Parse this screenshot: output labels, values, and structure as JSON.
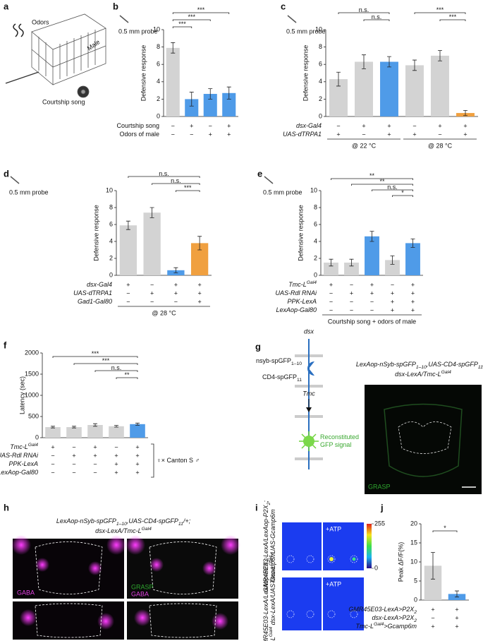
{
  "figure": {
    "a": {
      "panel": "a",
      "labels": [
        "Odors",
        "Male",
        "Courtship song"
      ]
    },
    "g": {
      "panel": "g",
      "gene_top": "dsx",
      "pre": [
        {
          "t": "nsyb-spGFP"
        },
        {
          "sub": "1–10"
        }
      ],
      "post": [
        {
          "t": "CD4-spGFP"
        },
        {
          "sub": "11"
        }
      ],
      "gene_bottom": "Tmc",
      "signal": [
        "Reconstituted",
        "GFP signal"
      ],
      "genotype": [
        [
          {
            "t": "LexAop-nSyb-spGFP"
          },
          {
            "sub": "1–10"
          },
          {
            "t": ",UAS-CD4-spGFP"
          },
          {
            "sub": "11"
          },
          {
            "t": "/+;"
          }
        ],
        [
          {
            "t": "dsx-LexA/Tmc-L"
          },
          {
            "sup": "Gal4"
          }
        ]
      ],
      "image_label": "GRASP"
    },
    "h": {
      "panel": "h",
      "genotype": [
        [
          {
            "t": "LexAop-nSyb-spGFP"
          },
          {
            "sub": "1–10"
          },
          {
            "t": ",UAS-CD4-spGFP"
          },
          {
            "sub": "11"
          },
          {
            "t": "/+;"
          }
        ],
        [
          {
            "t": "dsx-LexA/Tmc-L"
          },
          {
            "sup": "Gal4"
          }
        ]
      ],
      "label_left": "GABA",
      "label_right": [
        "GRASP",
        "GABA"
      ]
    },
    "i": {
      "panel": "i",
      "genotypes": [
        [
          [
            {
              "t": "GMR45E03-LexA/LexAop-P2X"
            },
            {
              "sub": "2"
            },
            {
              "t": ";"
            }
          ],
          [
            {
              "t": "Tmc-L"
            },
            {
              "sup": "Gal4"
            },
            {
              "t": "/UAS-Gcamp6m"
            }
          ]
        ],
        [
          [
            {
              "t": "GMR45E03-LexA/LexAop-P2X"
            },
            {
              "sub": "2"
            },
            {
              "t": ";"
            }
          ],
          [
            {
              "t": "Tmc-L"
            },
            {
              "sup": "Gal4"
            },
            {
              "t": " dsx-LexA/UAS-Gcamp6m"
            }
          ]
        ]
      ],
      "stimulus": "+ATP",
      "colorbar": [
        255,
        0
      ]
    }
  },
  "chart_data": [
    {
      "panel": "b",
      "type": "bar",
      "probe": "0.5 mm probe",
      "ylabel": "Defensive response",
      "ylim": [
        0,
        10
      ],
      "yticks": [
        0,
        2,
        4,
        6,
        8,
        10
      ],
      "values": [
        7.9,
        2.0,
        2.6,
        2.7
      ],
      "errors": [
        0.6,
        0.8,
        0.6,
        0.7
      ],
      "colors": [
        "#d3d3d3",
        "#4f9be8",
        "#4f9be8",
        "#4f9be8"
      ],
      "italic": false,
      "conditions": [
        {
          "label": [
            {
              "t": "Courtship song"
            }
          ],
          "values": [
            "−",
            "+",
            "−",
            "+"
          ]
        },
        {
          "label": [
            {
              "t": "Odors of male"
            }
          ],
          "values": [
            "−",
            "−",
            "+",
            "+"
          ]
        }
      ],
      "comparisons": [
        {
          "label": "***",
          "bars": [
            0,
            3
          ]
        },
        {
          "label": "***",
          "bars": [
            0,
            2
          ]
        },
        {
          "label": "***",
          "bars": [
            0,
            1
          ]
        }
      ]
    },
    {
      "panel": "c",
      "type": "bar",
      "probe": "0.5 mm probe",
      "ylabel": "Defensive response",
      "ylim": [
        0,
        10
      ],
      "yticks": [
        0,
        2,
        4,
        6,
        8,
        10
      ],
      "values": [
        4.3,
        6.3,
        6.3,
        5.9,
        7.0,
        0.4
      ],
      "errors": [
        0.8,
        0.8,
        0.6,
        0.6,
        0.6,
        0.3
      ],
      "colors": [
        "#d3d3d3",
        "#d3d3d3",
        "#4f9be8",
        "#d3d3d3",
        "#d3d3d3",
        "#f0a040"
      ],
      "italic": true,
      "conditions": [
        {
          "label": [
            {
              "t": "dsx-Gal4"
            }
          ],
          "values": [
            "−",
            "+",
            "+",
            "−",
            "+",
            "+"
          ]
        },
        {
          "label": [
            {
              "t": "UAS-dTRPA1"
            }
          ],
          "values": [
            "+",
            "−",
            "+",
            "+",
            "−",
            "+"
          ]
        }
      ],
      "groups": [
        {
          "label": "@ 22 °C",
          "bars": [
            0,
            2
          ]
        },
        {
          "label": "@ 28 °C",
          "bars": [
            3,
            5
          ]
        }
      ],
      "comparisons": [
        {
          "label": "n.s.",
          "bars": [
            0,
            2
          ]
        },
        {
          "label": "n.s.",
          "bars": [
            1,
            2
          ]
        },
        {
          "label": "***",
          "bars": [
            3,
            5
          ]
        },
        {
          "label": "***",
          "bars": [
            4,
            5
          ]
        }
      ]
    },
    {
      "panel": "d",
      "type": "bar",
      "probe": "0.5 mm probe",
      "ylabel": "Defensive response",
      "ylim": [
        0,
        10
      ],
      "yticks": [
        0,
        2,
        4,
        6,
        8,
        10
      ],
      "values": [
        5.9,
        7.4,
        0.6,
        3.8
      ],
      "errors": [
        0.5,
        0.6,
        0.3,
        0.8
      ],
      "colors": [
        "#d3d3d3",
        "#d3d3d3",
        "#4f9be8",
        "#f0a040"
      ],
      "italic": true,
      "conditions": [
        {
          "label": [
            {
              "t": "dsx-Gal4"
            }
          ],
          "values": [
            "+",
            "−",
            "+",
            "+"
          ]
        },
        {
          "label": [
            {
              "t": "UAS-dTRPA1"
            }
          ],
          "values": [
            "−",
            "+",
            "+",
            "+"
          ]
        },
        {
          "label": [
            {
              "t": "Gad1-Gal80"
            }
          ],
          "values": [
            "−",
            "−",
            "−",
            "+"
          ]
        }
      ],
      "groups": [
        {
          "label": "@ 28 °C",
          "bars": [
            0,
            3
          ]
        }
      ],
      "comparisons": [
        {
          "label": "n.s.",
          "bars": [
            0,
            3
          ]
        },
        {
          "label": "n.s.",
          "bars": [
            1,
            3
          ]
        },
        {
          "label": "***",
          "bars": [
            2,
            3
          ]
        }
      ]
    },
    {
      "panel": "e",
      "type": "bar",
      "probe": "0.5 mm probe",
      "ylabel": "Defensive response",
      "ylim": [
        0,
        10
      ],
      "yticks": [
        0,
        2,
        4,
        6,
        8,
        10
      ],
      "values": [
        1.5,
        1.5,
        4.6,
        1.8,
        3.8
      ],
      "errors": [
        0.4,
        0.4,
        0.6,
        0.5,
        0.5
      ],
      "colors": [
        "#d3d3d3",
        "#d3d3d3",
        "#4f9be8",
        "#d3d3d3",
        "#4f9be8"
      ],
      "italic": true,
      "conditions": [
        {
          "label": [
            {
              "t": "Tmc-L"
            },
            {
              "sup": "Gal4"
            }
          ],
          "values": [
            "+",
            "−",
            "+",
            "−",
            "+"
          ]
        },
        {
          "label": [
            {
              "t": "UAS-Rdl RNAi"
            }
          ],
          "values": [
            "−",
            "+",
            "+",
            "+",
            "+"
          ]
        },
        {
          "label": [
            {
              "t": "PPK-LexA"
            }
          ],
          "values": [
            "−",
            "−",
            "−",
            "+",
            "+"
          ]
        },
        {
          "label": [
            {
              "t": "LexAop-Gal80"
            }
          ],
          "values": [
            "−",
            "−",
            "−",
            "+",
            "+"
          ]
        }
      ],
      "groups": [
        {
          "label": "Courtship song + odors of male",
          "bars": [
            0,
            4
          ]
        }
      ],
      "comparisons": [
        {
          "label": "**",
          "bars": [
            0,
            4
          ]
        },
        {
          "label": "**",
          "bars": [
            1,
            4
          ]
        },
        {
          "label": "n.s.",
          "bars": [
            2,
            4
          ]
        },
        {
          "label": "*",
          "bars": [
            3,
            4
          ]
        }
      ]
    },
    {
      "panel": "f",
      "type": "bar",
      "ylabel": "Latency (sec)",
      "ylim": [
        0,
        2000
      ],
      "yticks": [
        0,
        500,
        1000,
        1500,
        2000
      ],
      "values": [
        250,
        250,
        300,
        270,
        320
      ],
      "errors": [
        20,
        20,
        30,
        20,
        25
      ],
      "colors": [
        "#d3d3d3",
        "#d3d3d3",
        "#d3d3d3",
        "#d3d3d3",
        "#4f9be8"
      ],
      "italic": true,
      "conditions": [
        {
          "label": [
            {
              "t": "Tmc-L"
            },
            {
              "sup": "Gal4"
            }
          ],
          "values": [
            "+",
            "−",
            "+",
            "−",
            "+"
          ]
        },
        {
          "label": [
            {
              "t": "UAS-Rdl RNAi"
            }
          ],
          "values": [
            "−",
            "+",
            "+",
            "+",
            "+"
          ]
        },
        {
          "label": [
            {
              "t": "PPK-LexA"
            }
          ],
          "values": [
            "−",
            "−",
            "−",
            "+",
            "+"
          ]
        },
        {
          "label": [
            {
              "t": "LexAop-Gal80"
            }
          ],
          "values": [
            "−",
            "−",
            "−",
            "+",
            "+"
          ]
        }
      ],
      "note": "♀× Canton S ♂",
      "comparisons": [
        {
          "label": "***",
          "bars": [
            0,
            4
          ]
        },
        {
          "label": "***",
          "bars": [
            1,
            4
          ]
        },
        {
          "label": "n.s.",
          "bars": [
            2,
            4
          ]
        },
        {
          "label": "**",
          "bars": [
            3,
            4
          ]
        }
      ]
    },
    {
      "panel": "j",
      "type": "bar",
      "ylabel": "Peak ΔF/F(%)",
      "ylim": [
        0,
        20
      ],
      "yticks": [
        0,
        5,
        10,
        15,
        20
      ],
      "values": [
        9,
        1.6
      ],
      "errors": [
        3.5,
        0.8
      ],
      "colors": [
        "#d3d3d3",
        "#4f9be8"
      ],
      "italic": true,
      "conditions": [
        {
          "label": [
            {
              "t": "GMR45E03-LexA>P2X"
            },
            {
              "sub": "2"
            }
          ],
          "values": [
            "+",
            "+"
          ]
        },
        {
          "label": [
            {
              "t": "dsx-LexA>P2X"
            },
            {
              "sub": "2"
            }
          ],
          "values": [
            "−",
            "+"
          ]
        },
        {
          "label": [
            {
              "t": "Tmc-L"
            },
            {
              "sup": "Gal4"
            },
            {
              "t": ">Gcamp6m"
            }
          ],
          "values": [
            "+",
            "+"
          ]
        }
      ],
      "comparisons": [
        {
          "label": "*",
          "bars": [
            0,
            1
          ]
        }
      ]
    }
  ]
}
